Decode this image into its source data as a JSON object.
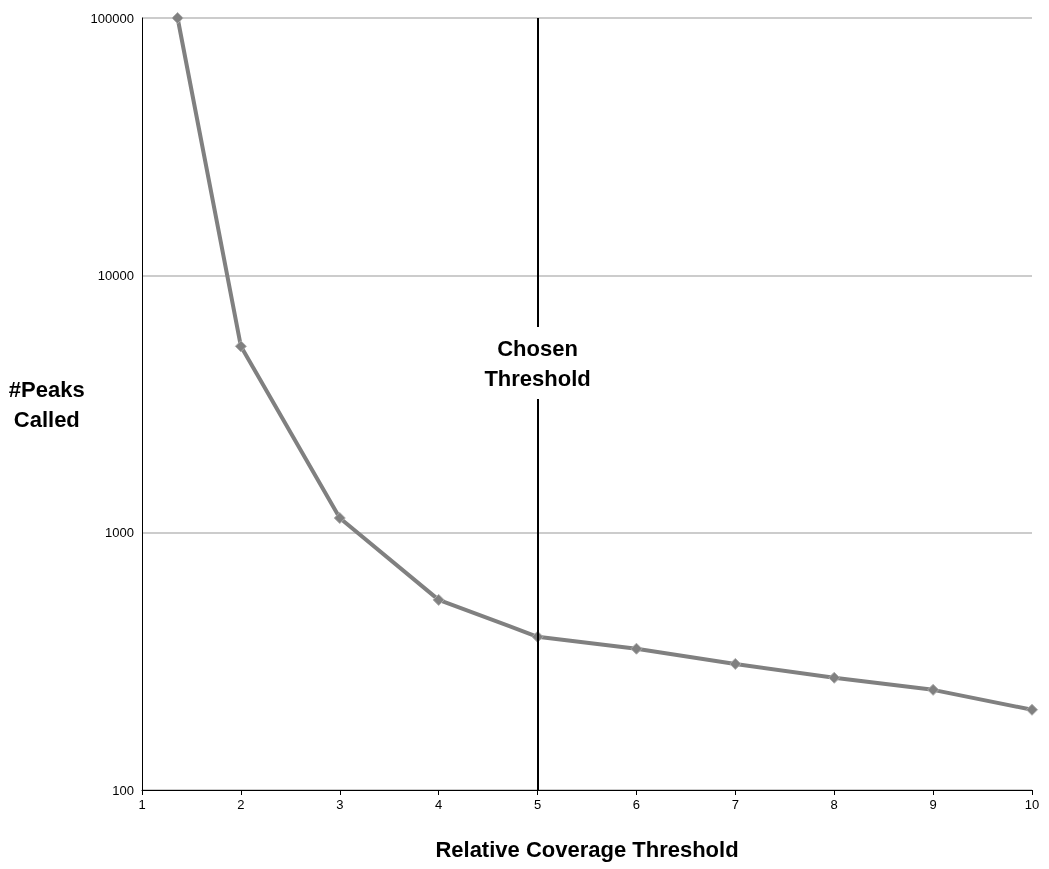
{
  "chart_data": {
    "type": "line",
    "xlabel": "Relative Coverage Threshold",
    "ylabel": "#Peaks Called",
    "x": [
      1.36,
      2,
      3,
      4,
      5,
      6,
      7,
      8,
      9,
      10
    ],
    "series": [
      {
        "color": "#808080",
        "values": [
          100000,
          5300,
          1140,
          548,
          394,
          354,
          309,
          273,
          245,
          205
        ]
      }
    ],
    "xlim": [
      1,
      10
    ],
    "xticks": [
      1,
      2,
      3,
      4,
      5,
      6,
      7,
      8,
      9,
      10
    ],
    "ylim": [
      100,
      100000
    ],
    "yticks": [
      100,
      1000,
      10000,
      100000
    ],
    "log": "y",
    "grid": "y",
    "marker": "diamond",
    "line_style": "solid",
    "ref_lines": [
      {
        "axis": "x",
        "value": 5,
        "label": "Chosen Threshold",
        "color": "#000000"
      }
    ]
  }
}
